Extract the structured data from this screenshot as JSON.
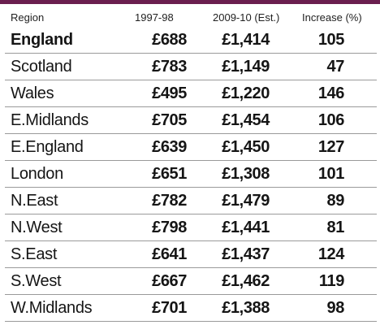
{
  "headers": {
    "region": "Region",
    "col_1997": "1997-98",
    "col_2009": "2009-10 (Est.)",
    "col_increase": "Increase (%)"
  },
  "rows": [
    {
      "region": "England",
      "v1997": "£688",
      "v2009": "£1,414",
      "increase": "105"
    },
    {
      "region": "Scotland",
      "v1997": "£783",
      "v2009": "£1,149",
      "increase": "47"
    },
    {
      "region": "Wales",
      "v1997": "£495",
      "v2009": "£1,220",
      "increase": "146"
    },
    {
      "region": "E.Midlands",
      "v1997": "£705",
      "v2009": "£1,454",
      "increase": "106"
    },
    {
      "region": "E.England",
      "v1997": "£639",
      "v2009": "£1,450",
      "increase": "127"
    },
    {
      "region": "London",
      "v1997": "£651",
      "v2009": "£1,308",
      "increase": "101"
    },
    {
      "region": "N.East",
      "v1997": "£782",
      "v2009": "£1,479",
      "increase": "89"
    },
    {
      "region": "N.West",
      "v1997": "£798",
      "v2009": "£1,441",
      "increase": "81"
    },
    {
      "region": "S.East",
      "v1997": "£641",
      "v2009": "£1,437",
      "increase": "124"
    },
    {
      "region": "S.West",
      "v1997": "£667",
      "v2009": "£1,462",
      "increase": "119"
    },
    {
      "region": "W.Midlands",
      "v1997": "£701",
      "v2009": "£1,388",
      "increase": "98"
    }
  ],
  "colors": {
    "band": "#6a1e4f",
    "rule": "#9a9a9a",
    "text": "#151515"
  }
}
